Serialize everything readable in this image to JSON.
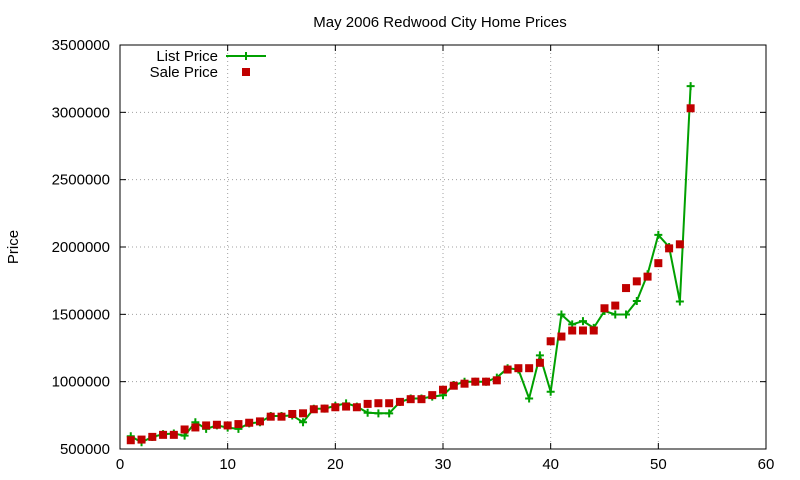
{
  "chart_data": {
    "type": "line",
    "title": "May 2006 Redwood City Home Prices",
    "xlabel": "",
    "ylabel": "Price",
    "xlim": [
      0,
      60
    ],
    "ylim": [
      500000,
      3500000
    ],
    "x_ticks": [
      0,
      10,
      20,
      30,
      40,
      50,
      60
    ],
    "x_tick_labels": [
      "0",
      "10",
      "20",
      "30",
      "40",
      "50",
      "60"
    ],
    "y_ticks": [
      500000,
      1000000,
      1500000,
      2000000,
      2500000,
      3000000,
      3500000
    ],
    "y_tick_labels": [
      "500000",
      "1000000",
      "1500000",
      "2000000",
      "2500000",
      "3000000",
      "3500000"
    ],
    "grid": true,
    "legend_position": "top-left",
    "series": [
      {
        "name": "List Price",
        "style": "linespoints",
        "color": "#00a000",
        "marker": "plus",
        "x": [
          1,
          2,
          3,
          4,
          5,
          6,
          7,
          8,
          9,
          10,
          11,
          12,
          13,
          14,
          15,
          16,
          17,
          18,
          19,
          20,
          21,
          22,
          23,
          24,
          25,
          26,
          27,
          28,
          29,
          30,
          31,
          32,
          33,
          34,
          35,
          36,
          37,
          38,
          39,
          40,
          41,
          42,
          43,
          44,
          45,
          46,
          47,
          48,
          49,
          50,
          51,
          52,
          53
        ],
        "y": [
          595000,
          550000,
          589000,
          610000,
          615000,
          599000,
          699000,
          649000,
          675000,
          659000,
          649000,
          690000,
          699000,
          745000,
          745000,
          749000,
          699000,
          799000,
          800000,
          820000,
          839000,
          815000,
          769000,
          765000,
          765000,
          849000,
          875000,
          875000,
          889000,
          899000,
          975000,
          999000,
          999000,
          999000,
          1030000,
          1100000,
          1090000,
          875000,
          1195000,
          925000,
          1499000,
          1425000,
          1450000,
          1399000,
          1525000,
          1499000,
          1499000,
          1599000,
          1798000,
          2090000,
          2000000,
          1595000,
          3195000
        ]
      },
      {
        "name": "Sale Price",
        "style": "points",
        "color": "#c00000",
        "marker": "square",
        "x": [
          1,
          2,
          3,
          4,
          5,
          6,
          7,
          8,
          9,
          10,
          11,
          12,
          13,
          14,
          15,
          16,
          17,
          18,
          19,
          20,
          21,
          22,
          23,
          24,
          25,
          26,
          27,
          28,
          29,
          30,
          31,
          32,
          33,
          34,
          35,
          36,
          37,
          38,
          39,
          40,
          41,
          42,
          43,
          44,
          45,
          46,
          47,
          48,
          49,
          50,
          51,
          52,
          53
        ],
        "y": [
          565000,
          570000,
          590000,
          605000,
          605000,
          645000,
          660000,
          675000,
          680000,
          675000,
          685000,
          695000,
          705000,
          740000,
          740000,
          760000,
          765000,
          795000,
          800000,
          810000,
          815000,
          810000,
          835000,
          840000,
          840000,
          850000,
          870000,
          870000,
          900000,
          940000,
          970000,
          985000,
          1000000,
          1000000,
          1010000,
          1090000,
          1100000,
          1100000,
          1140000,
          1300000,
          1335000,
          1380000,
          1380000,
          1380000,
          1545000,
          1565000,
          1695000,
          1745000,
          1780000,
          1880000,
          1990000,
          2020000,
          3030000
        ]
      }
    ]
  }
}
